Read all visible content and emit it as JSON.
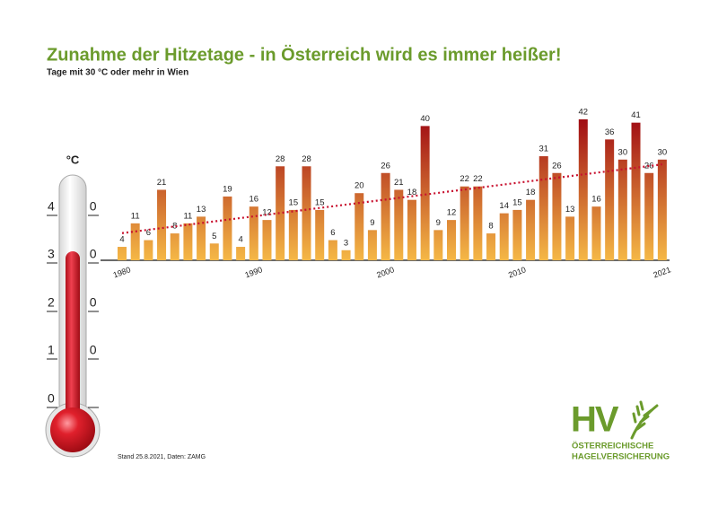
{
  "chart_data": {
    "type": "bar",
    "title": "Zunahme der Hitzetage - in Österreich wird es immer heißer!",
    "subtitle": "Tage mit 30 °C oder mehr in Wien",
    "source": "Stand 25.8.2021, Daten: ZAMG",
    "categories": [
      "1980",
      null,
      null,
      null,
      null,
      null,
      null,
      null,
      null,
      null,
      "1990",
      null,
      null,
      null,
      null,
      null,
      null,
      null,
      null,
      null,
      "2000",
      null,
      null,
      null,
      null,
      null,
      null,
      null,
      null,
      null,
      "2010",
      null,
      null,
      null,
      null,
      null,
      null,
      null,
      null,
      null,
      null,
      "2021"
    ],
    "values": [
      4,
      11,
      6,
      21,
      8,
      11,
      13,
      5,
      19,
      4,
      16,
      12,
      28,
      15,
      28,
      15,
      6,
      3,
      20,
      9,
      26,
      21,
      18,
      40,
      9,
      12,
      22,
      22,
      8,
      14,
      15,
      18,
      31,
      26,
      13,
      42,
      16,
      36,
      30,
      41,
      26,
      30
    ],
    "gradient": [
      "#f5b846",
      "#a00d14"
    ],
    "trendline": true,
    "trend_color": "#c8102e",
    "thermometer": {
      "unit": "°C",
      "ticks": [
        40,
        30,
        20,
        10,
        0
      ]
    },
    "logo": {
      "mark": "HV",
      "lines": [
        "ÖSTERREICHISCHE",
        "HAGELVERSICHERUNG"
      ]
    }
  }
}
